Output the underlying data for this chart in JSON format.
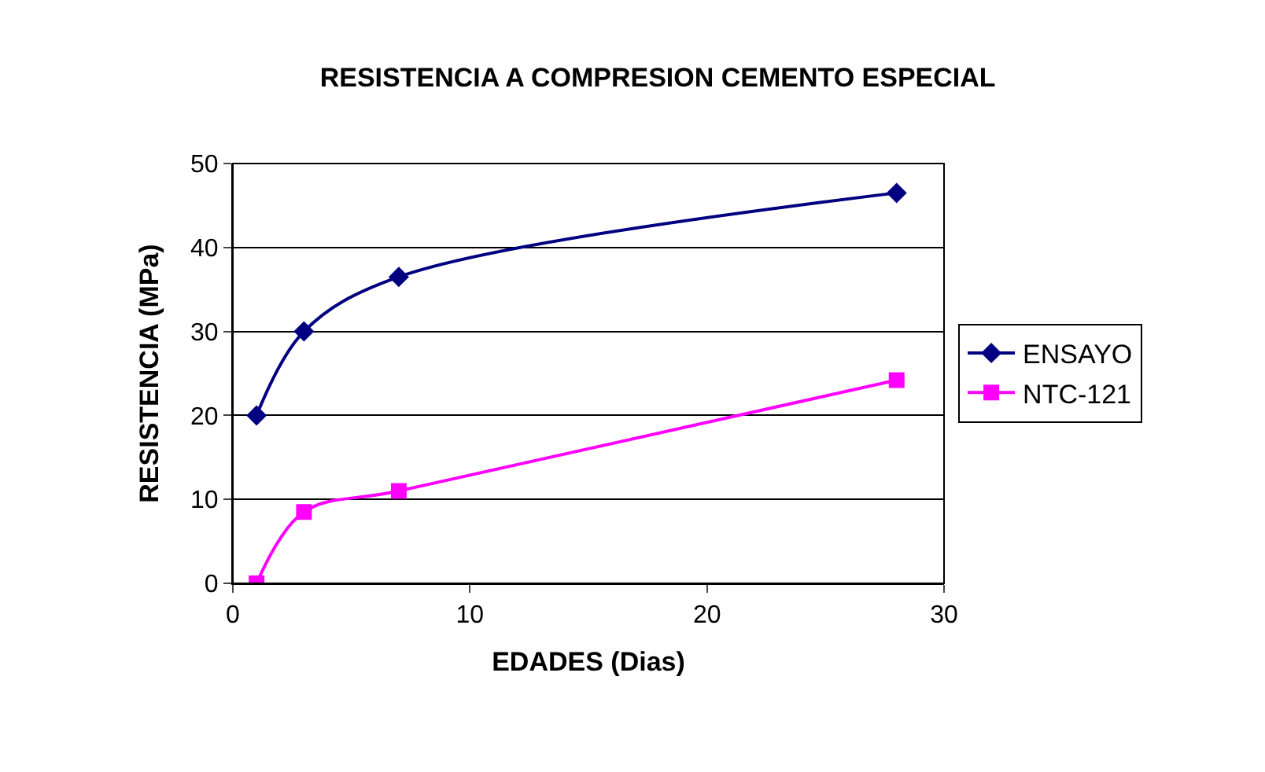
{
  "chart_data": {
    "type": "line",
    "title": "RESISTENCIA A COMPRESION CEMENTO ESPECIAL",
    "xlabel": "EDADES (Dias)",
    "ylabel": "RESISTENCIA (MPa)",
    "x": [
      1,
      3,
      7,
      28
    ],
    "series": [
      {
        "name": "ENSAYO",
        "color": "#000080",
        "values": [
          20,
          30,
          36.5,
          46.5
        ],
        "marker": "diamond"
      },
      {
        "name": "NTC-121",
        "color": "#ff00ff",
        "values": [
          0,
          8.5,
          11,
          24.2
        ],
        "marker": "square"
      }
    ],
    "xlim": [
      0,
      30
    ],
    "xticks": [
      0,
      10,
      20,
      30
    ],
    "ylim": [
      0,
      50
    ],
    "yticks": [
      0,
      10,
      20,
      30,
      40,
      50
    ],
    "grid": "y",
    "legend": "right"
  }
}
